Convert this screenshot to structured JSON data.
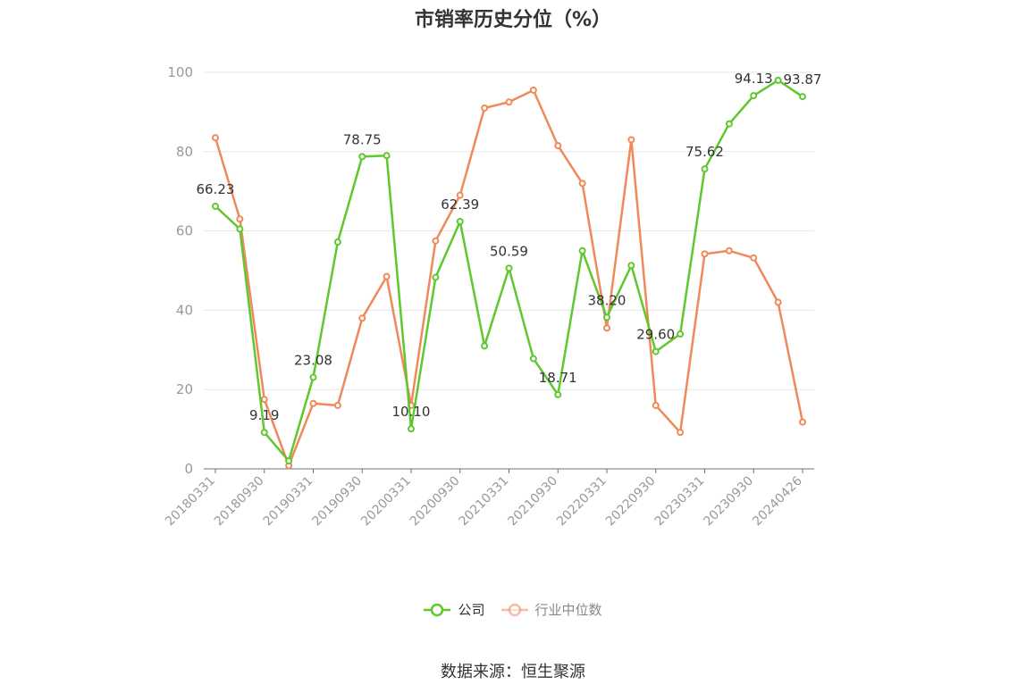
{
  "chart_data": {
    "type": "line",
    "title": "市销率历史分位（%）",
    "x": [
      "20180331",
      "20180630",
      "20180930",
      "20181231",
      "20190331",
      "20190630",
      "20190930",
      "20191231",
      "20200331",
      "20200630",
      "20200930",
      "20201231",
      "20210331",
      "20210630",
      "20210930",
      "20211231",
      "20220331",
      "20220630",
      "20220930",
      "20221231",
      "20230331",
      "20230630",
      "20230930",
      "20231231",
      "20240426"
    ],
    "x_tick_labels": [
      "20180331",
      "20180930",
      "20190331",
      "20190930",
      "20200331",
      "20200930",
      "20210331",
      "20210930",
      "20220331",
      "20220930",
      "20230331",
      "20230930",
      "20240426"
    ],
    "ylim": [
      0,
      100
    ],
    "y_ticks": [
      "0",
      "20",
      "40",
      "60",
      "80",
      "100"
    ],
    "grid": true,
    "legend_position": "bottom",
    "series": [
      {
        "name": "公司",
        "color": "#5ec82e",
        "values": [
          66.23,
          60.5,
          9.19,
          2.0,
          23.08,
          57.2,
          78.75,
          79.0,
          10.1,
          48.3,
          62.39,
          31.0,
          50.59,
          27.8,
          18.71,
          55.0,
          38.2,
          51.3,
          29.6,
          34.0,
          75.62,
          87.0,
          94.13,
          98.0,
          93.87
        ],
        "labels": [
          "66.23",
          "",
          "9.19",
          "",
          "23.08",
          "",
          "78.75",
          "",
          "10.10",
          "",
          "62.39",
          "",
          "50.59",
          "",
          "18.71",
          "",
          "38.20",
          "",
          "29.60",
          "",
          "75.62",
          "",
          "94.13",
          "",
          "93.87"
        ]
      },
      {
        "name": "行业中位数",
        "color": "#f0895a",
        "values": [
          83.5,
          63.0,
          17.5,
          0.8,
          16.5,
          16.0,
          38.0,
          48.5,
          16.0,
          57.5,
          69.0,
          91.0,
          92.5,
          95.5,
          81.5,
          72.0,
          35.5,
          83.0,
          16.0,
          9.2,
          54.2,
          55.0,
          53.2,
          42.0,
          11.8
        ]
      }
    ]
  },
  "source": "数据来源：恒生聚源"
}
